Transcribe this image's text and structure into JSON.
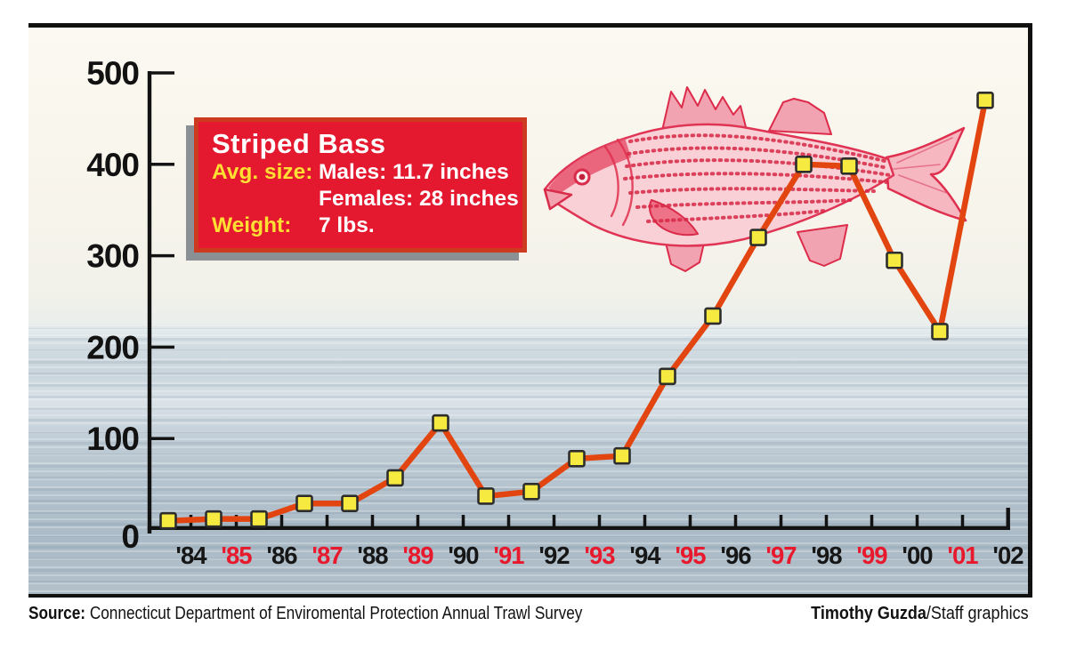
{
  "title_box": {
    "title": "Striped Bass",
    "avg_size_label": "Avg. size:",
    "males_value": "Males: 11.7 inches",
    "females_value": "Females: 28 inches",
    "weight_label": "Weight:",
    "weight_value": "7 lbs.",
    "bg_color": "#e4182e",
    "border_color": "#cc3a20",
    "label_color": "#ffdf33",
    "text_color": "#ffffff"
  },
  "chart_data": {
    "type": "line",
    "title": "Striped Bass annual trawl survey counts",
    "x": [
      "'84",
      "'85",
      "'86",
      "'87",
      "'88",
      "'89",
      "'90",
      "'91",
      "'92",
      "'93",
      "'94",
      "'95",
      "'96",
      "'97",
      "'98",
      "'99",
      "'00",
      "'01",
      "'02"
    ],
    "values": [
      10,
      12,
      12,
      29,
      29,
      57,
      117,
      37,
      42,
      78,
      81,
      168,
      234,
      320,
      400,
      398,
      295,
      217,
      470
    ],
    "ylim": [
      0,
      500
    ],
    "y_ticks": [
      0,
      100,
      200,
      300,
      400,
      500
    ],
    "grid": false,
    "legend_position": "none",
    "line_color": "#e2450f",
    "marker_color": "#f6e940",
    "marker_border": "#2d2d2d",
    "axis_color": "#121212",
    "x_label_black": "#161616",
    "x_label_red": "#e8192c",
    "x_red_indices": [
      1,
      3,
      5,
      7,
      9,
      11,
      13,
      15,
      17
    ]
  },
  "fish": {
    "icon": "striped-bass-illustration",
    "main_color": "#df2f4e",
    "fill_color": "#f9d0d6"
  },
  "footer": {
    "source_label": "Source:",
    "source_text": " Connecticut Department of Enviromental Protection Annual Trawl Survey",
    "credit_bold": "Timothy Guzda",
    "credit_regular": "/Staff graphics"
  }
}
